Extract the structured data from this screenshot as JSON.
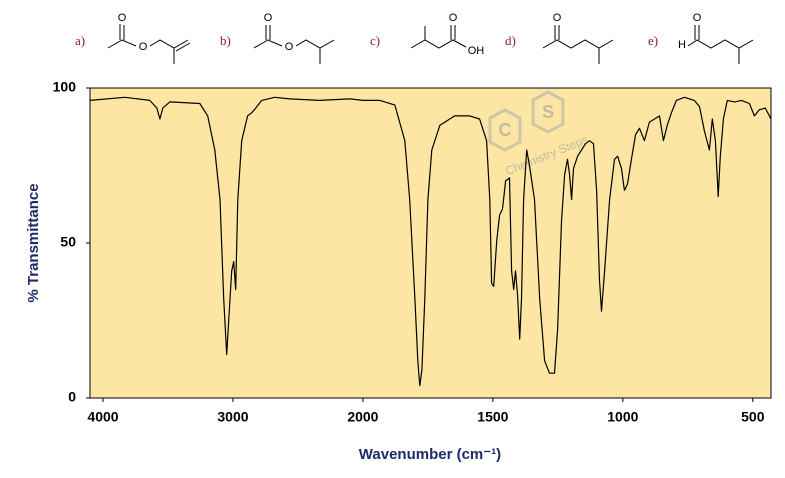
{
  "structures": [
    {
      "label": "a)",
      "atoms": [
        "O",
        "O"
      ]
    },
    {
      "label": "b)",
      "atoms": [
        "O",
        "O"
      ]
    },
    {
      "label": "c)",
      "atoms": [
        "O",
        "OH"
      ]
    },
    {
      "label": "d)",
      "atoms": [
        "O"
      ]
    },
    {
      "label": "e)",
      "atoms": [
        "O",
        "H"
      ]
    }
  ],
  "watermark": {
    "letters": [
      "C",
      "S"
    ],
    "text": "Chemistry Steps"
  },
  "chart_data": {
    "type": "line",
    "xlabel": "Wavenumber (cm⁻¹)",
    "ylabel": "% Transmittance",
    "xlim": [
      4100,
      430
    ],
    "xscale_break": 2000,
    "xscale_factor": 2,
    "ylim": [
      0,
      100
    ],
    "xticks": [
      4000,
      3000,
      2000,
      1500,
      1000,
      500
    ],
    "yticks": [
      0,
      50,
      100
    ],
    "color": "#000000",
    "background": "#fde6a3",
    "x": [
      4100,
      3831,
      3640,
      3585,
      3562,
      3540,
      3486,
      3255,
      3194,
      3140,
      3100,
      3071,
      3048,
      3033,
      3010,
      2994,
      2979,
      2963,
      2933,
      2887,
      2856,
      2825,
      2779,
      2679,
      2564,
      2333,
      2100,
      2000,
      1935,
      1877,
      1839,
      1820,
      1800,
      1789,
      1781,
      1773,
      1762,
      1750,
      1735,
      1704,
      1647,
      1589,
      1551,
      1524,
      1512,
      1505,
      1497,
      1485,
      1474,
      1463,
      1451,
      1436,
      1428,
      1420,
      1413,
      1405,
      1397,
      1390,
      1382,
      1370,
      1359,
      1340,
      1320,
      1301,
      1282,
      1263,
      1251,
      1236,
      1224,
      1213,
      1205,
      1197,
      1190,
      1174,
      1159,
      1144,
      1128,
      1113,
      1101,
      1090,
      1082,
      1070,
      1051,
      1032,
      1020,
      1005,
      994,
      982,
      967,
      951,
      936,
      917,
      898,
      878,
      859,
      844,
      829,
      813,
      794,
      763,
      725,
      705,
      686,
      667,
      656,
      644,
      633,
      625,
      613,
      598,
      571,
      544,
      513,
      494,
      475,
      452,
      430
    ],
    "values": [
      96,
      97,
      96,
      93.5,
      90,
      93.5,
      95.5,
      95,
      91,
      80,
      64,
      32,
      14,
      25,
      41,
      44,
      35,
      64,
      83,
      91,
      92,
      93.5,
      96,
      97,
      96.5,
      96,
      96.5,
      96,
      96,
      94.5,
      83,
      64,
      32,
      12,
      4,
      9,
      32,
      64,
      80,
      88,
      91,
      91,
      90,
      83,
      64,
      37,
      36,
      51,
      59,
      61,
      70,
      71,
      41,
      35,
      41,
      33,
      19,
      32,
      64,
      80,
      75,
      64,
      32,
      12,
      8,
      8,
      22,
      57,
      72,
      77,
      72,
      64,
      74,
      78,
      80,
      82,
      83,
      82,
      67,
      38,
      28,
      41,
      64,
      77,
      78,
      74,
      67,
      69,
      77,
      85,
      87,
      83,
      89,
      90,
      91,
      83,
      88,
      92,
      96,
      97,
      96,
      94,
      86,
      80,
      90,
      83,
      65,
      78,
      90,
      96,
      95.5,
      96,
      95,
      91,
      93,
      93.5,
      90
    ]
  }
}
